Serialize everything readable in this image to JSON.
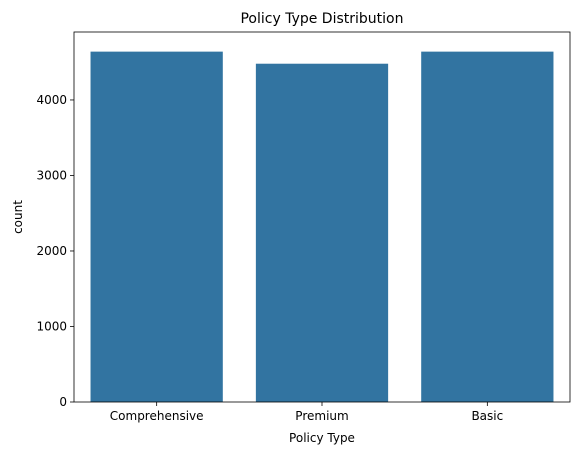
{
  "chart_data": {
    "type": "bar",
    "title": "Policy Type Distribution",
    "xlabel": "Policy Type",
    "ylabel": "count",
    "categories": [
      "Comprehensive",
      "Premium",
      "Basic"
    ],
    "values": [
      4640,
      4480,
      4640
    ],
    "ylim": [
      0,
      4900
    ],
    "yticks": [
      0,
      1000,
      2000,
      3000,
      4000
    ],
    "grid": false,
    "bar_color": "#3274a1"
  }
}
